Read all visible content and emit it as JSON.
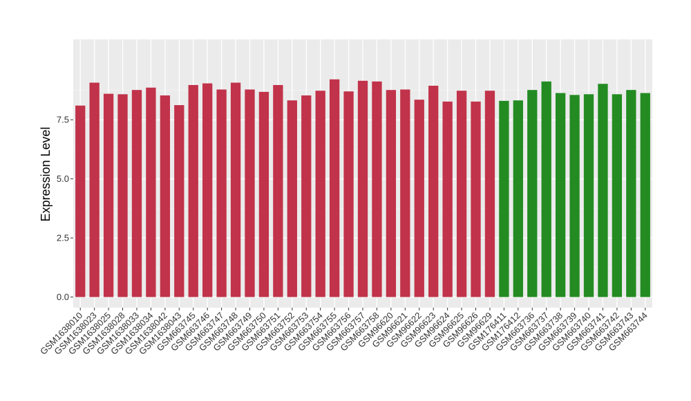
{
  "chart_data": {
    "type": "bar",
    "ylabel": "Expression Level",
    "xlabel": "",
    "ylim": [
      -0.45,
      10.9
    ],
    "yticks": [
      0.0,
      2.5,
      5.0,
      7.5
    ],
    "ytick_labels": [
      "0.0",
      "2.5",
      "5.0",
      "7.5"
    ],
    "grid": true,
    "panel_color": "#ebebeb",
    "categories": [
      "GSM1638010",
      "GSM1638023",
      "GSM1638025",
      "GSM1638028",
      "GSM1638033",
      "GSM1638034",
      "GSM1638042",
      "GSM1638043",
      "GSM663745",
      "GSM663746",
      "GSM663747",
      "GSM663748",
      "GSM663749",
      "GSM663750",
      "GSM663751",
      "GSM663752",
      "GSM663753",
      "GSM663754",
      "GSM663755",
      "GSM663756",
      "GSM663757",
      "GSM663758",
      "GSM96620",
      "GSM96621",
      "GSM96622",
      "GSM96623",
      "GSM96624",
      "GSM96625",
      "GSM96626",
      "GSM96629",
      "GSM176411",
      "GSM176412",
      "GSM663736",
      "GSM663737",
      "GSM663738",
      "GSM663739",
      "GSM663740",
      "GSM663741",
      "GSM663742",
      "GSM663743",
      "GSM663744"
    ],
    "values": [
      8.1,
      9.07,
      8.6,
      8.58,
      8.76,
      8.86,
      8.53,
      8.12,
      8.97,
      9.04,
      8.78,
      9.07,
      8.78,
      8.68,
      8.97,
      8.32,
      8.53,
      8.73,
      9.21,
      8.7,
      9.15,
      9.12,
      8.76,
      8.78,
      8.35,
      8.94,
      8.27,
      8.73,
      8.27,
      8.73,
      8.3,
      8.32,
      8.76,
      9.12,
      8.63,
      8.55,
      8.58,
      9.02,
      8.58,
      8.76,
      8.63
    ],
    "colors": [
      "#c1334a",
      "#c1334a",
      "#c1334a",
      "#c1334a",
      "#c1334a",
      "#c1334a",
      "#c1334a",
      "#c1334a",
      "#c1334a",
      "#c1334a",
      "#c1334a",
      "#c1334a",
      "#c1334a",
      "#c1334a",
      "#c1334a",
      "#c1334a",
      "#c1334a",
      "#c1334a",
      "#c1334a",
      "#c1334a",
      "#c1334a",
      "#c1334a",
      "#c1334a",
      "#c1334a",
      "#c1334a",
      "#c1334a",
      "#c1334a",
      "#c1334a",
      "#c1334a",
      "#c1334a",
      "#238b22",
      "#238b22",
      "#238b22",
      "#238b22",
      "#238b22",
      "#238b22",
      "#238b22",
      "#238b22",
      "#238b22",
      "#238b22",
      "#238b22"
    ]
  }
}
